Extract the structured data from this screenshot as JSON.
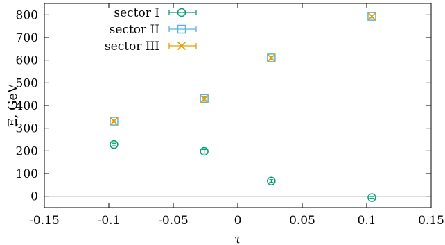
{
  "chart_data": {
    "type": "scatter",
    "xlabel": "τ",
    "ylabel": "Ξ, GeV",
    "xlim": [
      -0.15,
      0.15
    ],
    "ylim": [
      -50,
      850
    ],
    "xticks": [
      "-0.15",
      "-0.1",
      "-0.05",
      "0",
      "0.05",
      "0.1",
      "0.15"
    ],
    "xtick_values": [
      -0.15,
      -0.1,
      -0.05,
      0,
      0.05,
      0.1,
      0.15
    ],
    "yticks": [
      "0",
      "100",
      "200",
      "300",
      "400",
      "500",
      "600",
      "700",
      "800"
    ],
    "ytick_values": [
      0,
      100,
      200,
      300,
      400,
      500,
      600,
      700,
      800
    ],
    "zero_line": true,
    "legend_position": "top-left",
    "series": [
      {
        "name": "sector I",
        "marker": "circle",
        "color": "#009e73",
        "points": [
          {
            "x": -0.096,
            "y": 228,
            "err": 6
          },
          {
            "x": -0.026,
            "y": 198,
            "err": 8
          },
          {
            "x": 0.026,
            "y": 67,
            "err": 6
          },
          {
            "x": 0.104,
            "y": -6,
            "err": 5
          }
        ]
      },
      {
        "name": "sector II",
        "marker": "square",
        "color": "#56b4e9",
        "points": [
          {
            "x": -0.096,
            "y": 331,
            "err": 5
          },
          {
            "x": -0.026,
            "y": 431,
            "err": 7
          },
          {
            "x": 0.026,
            "y": 610,
            "err": 6
          },
          {
            "x": 0.104,
            "y": 793,
            "err": 6
          }
        ]
      },
      {
        "name": "sector III",
        "marker": "cross",
        "color": "#e69f00",
        "points": [
          {
            "x": -0.096,
            "y": 331,
            "err": 5
          },
          {
            "x": -0.026,
            "y": 428,
            "err": 8
          },
          {
            "x": 0.026,
            "y": 610,
            "err": 6
          },
          {
            "x": 0.104,
            "y": 793,
            "err": 6
          }
        ]
      }
    ]
  }
}
